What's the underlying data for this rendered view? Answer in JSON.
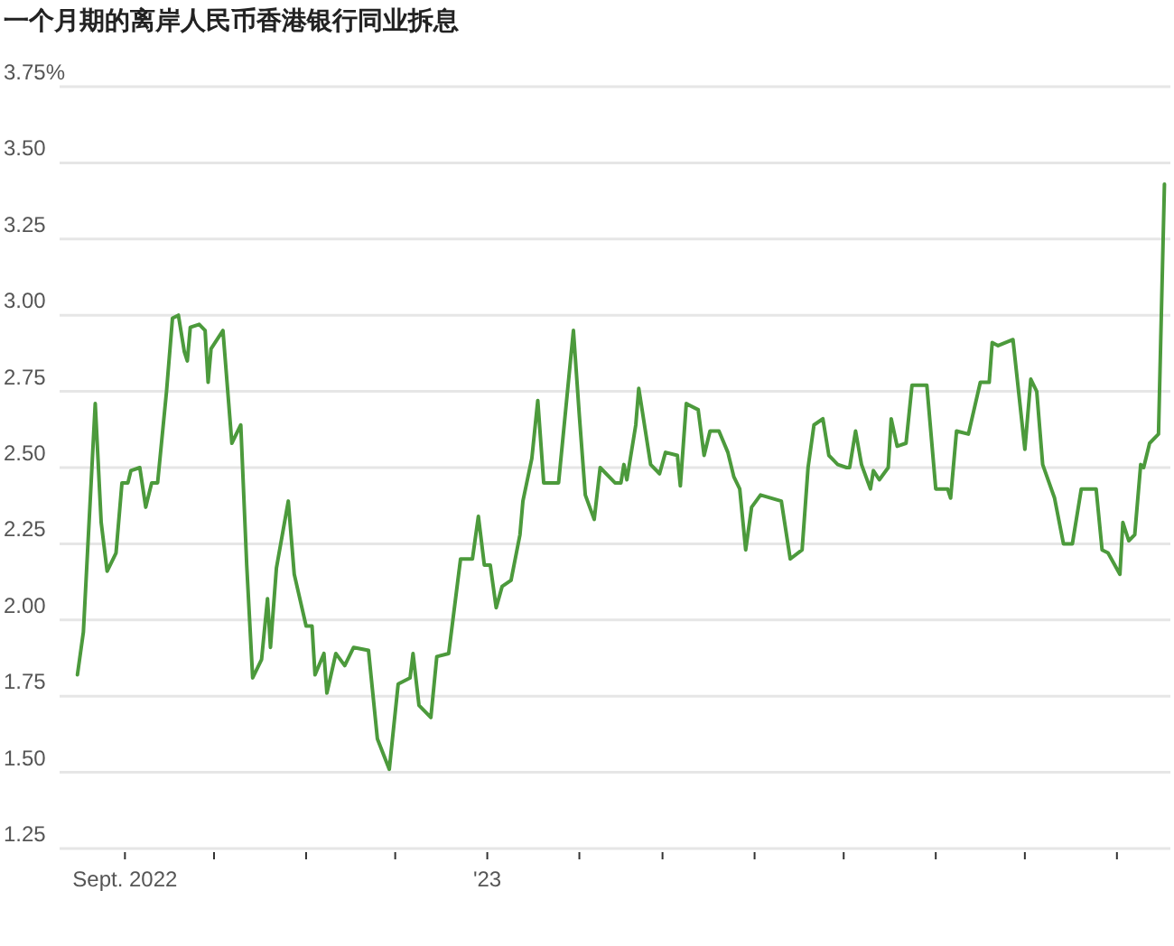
{
  "chart_data": {
    "type": "line",
    "title": "一个月期的离岸人民币香港银行同业拆息",
    "x": [
      "2022-08-16",
      "2022-08-18",
      "2022-08-22",
      "2022-08-24",
      "2022-08-26",
      "2022-08-29",
      "2022-08-31",
      "2022-09-02",
      "2022-09-03",
      "2022-09-06",
      "2022-09-08",
      "2022-09-10",
      "2022-09-12",
      "2022-09-15",
      "2022-09-17",
      "2022-09-19",
      "2022-09-21",
      "2022-09-22",
      "2022-09-23",
      "2022-09-26",
      "2022-09-28",
      "2022-09-29",
      "2022-09-30",
      "2022-10-04",
      "2022-10-07",
      "2022-10-10",
      "2022-10-12",
      "2022-10-14",
      "2022-10-17",
      "2022-10-19",
      "2022-10-20",
      "2022-10-22",
      "2022-10-26",
      "2022-10-28",
      "2022-11-01",
      "2022-11-03",
      "2022-11-04",
      "2022-11-07",
      "2022-11-08",
      "2022-11-11",
      "2022-11-14",
      "2022-11-17",
      "2022-11-22",
      "2022-11-25",
      "2022-11-29",
      "2022-12-02",
      "2022-12-06",
      "2022-12-07",
      "2022-12-09",
      "2022-12-13",
      "2022-12-15",
      "2022-12-19",
      "2022-12-23",
      "2022-12-27",
      "2022-12-29",
      "2022-12-31",
      "2023-01-02",
      "2023-01-04",
      "2023-01-06",
      "2023-01-09",
      "2023-01-12",
      "2023-01-13",
      "2023-01-16",
      "2023-01-18",
      "2023-01-20",
      "2023-01-25",
      "2023-01-30",
      "2023-02-01",
      "2023-02-03",
      "2023-02-06",
      "2023-02-08",
      "2023-02-13",
      "2023-02-15",
      "2023-02-16",
      "2023-02-17",
      "2023-02-20",
      "2023-02-21",
      "2023-02-25",
      "2023-02-28",
      "2023-03-02",
      "2023-03-06",
      "2023-03-07",
      "2023-03-09",
      "2023-03-13",
      "2023-03-15",
      "2023-03-17",
      "2023-03-20",
      "2023-03-23",
      "2023-03-25",
      "2023-03-27",
      "2023-03-29",
      "2023-03-31",
      "2023-04-03",
      "2023-04-10",
      "2023-04-13",
      "2023-04-17",
      "2023-04-19",
      "2023-04-21",
      "2023-04-24",
      "2023-04-26",
      "2023-04-29",
      "2023-05-02",
      "2023-05-03",
      "2023-05-05",
      "2023-05-07",
      "2023-05-10",
      "2023-05-11",
      "2023-05-13",
      "2023-05-16",
      "2023-05-17",
      "2023-05-19",
      "2023-05-22",
      "2023-05-24",
      "2023-05-29",
      "2023-06-01",
      "2023-06-05",
      "2023-06-06",
      "2023-06-08",
      "2023-06-12",
      "2023-06-16",
      "2023-06-19",
      "2023-06-20",
      "2023-06-22",
      "2023-06-27",
      "2023-07-01",
      "2023-07-03",
      "2023-07-05",
      "2023-07-07",
      "2023-07-11",
      "2023-07-14",
      "2023-07-17",
      "2023-07-20",
      "2023-07-25",
      "2023-07-27",
      "2023-07-29",
      "2023-08-02",
      "2023-08-03",
      "2023-08-05",
      "2023-08-07",
      "2023-08-09",
      "2023-08-10",
      "2023-08-12",
      "2023-08-15",
      "2023-08-17"
    ],
    "values": [
      1.82,
      1.96,
      2.71,
      2.32,
      2.16,
      2.22,
      2.45,
      2.45,
      2.49,
      2.5,
      2.37,
      2.45,
      2.45,
      2.75,
      2.99,
      3.0,
      2.88,
      2.85,
      2.96,
      2.97,
      2.95,
      2.78,
      2.89,
      2.95,
      2.58,
      2.64,
      2.18,
      1.81,
      1.87,
      2.07,
      1.91,
      2.17,
      2.39,
      2.15,
      1.98,
      1.98,
      1.82,
      1.89,
      1.76,
      1.89,
      1.85,
      1.91,
      1.9,
      1.61,
      1.51,
      1.79,
      1.81,
      1.89,
      1.72,
      1.68,
      1.88,
      1.89,
      2.2,
      2.2,
      2.34,
      2.18,
      2.18,
      2.04,
      2.11,
      2.13,
      2.28,
      2.39,
      2.53,
      2.72,
      2.45,
      2.45,
      2.95,
      2.67,
      2.41,
      2.33,
      2.5,
      2.45,
      2.45,
      2.51,
      2.46,
      2.64,
      2.76,
      2.51,
      2.48,
      2.55,
      2.54,
      2.44,
      2.71,
      2.69,
      2.54,
      2.62,
      2.62,
      2.55,
      2.47,
      2.43,
      2.23,
      2.37,
      2.41,
      2.39,
      2.2,
      2.23,
      2.5,
      2.64,
      2.66,
      2.54,
      2.51,
      2.5,
      2.5,
      2.62,
      2.51,
      2.43,
      2.49,
      2.46,
      2.5,
      2.66,
      2.57,
      2.58,
      2.77,
      2.77,
      2.43,
      2.43,
      2.4,
      2.62,
      2.61,
      2.78,
      2.78,
      2.91,
      2.9,
      2.92,
      2.56,
      2.79,
      2.75,
      2.51,
      2.4,
      2.25,
      2.25,
      2.43,
      2.43,
      2.23,
      2.22,
      2.15,
      2.32,
      2.26,
      2.28,
      2.51,
      2.5,
      2.58,
      2.61,
      3.43
    ],
    "color": "#4c9a3c",
    "xlim": [
      "2022-08-10",
      "2023-08-19"
    ],
    "xticks": [
      {
        "value": "2022-09-01",
        "label": "Sept. 2022"
      },
      {
        "value": "2022-10-01",
        "label": null
      },
      {
        "value": "2022-11-01",
        "label": null
      },
      {
        "value": "2022-12-01",
        "label": null
      },
      {
        "value": "2023-01-01",
        "label": "'23"
      },
      {
        "value": "2023-02-01",
        "label": null
      },
      {
        "value": "2023-03-01",
        "label": null
      },
      {
        "value": "2023-04-01",
        "label": null
      },
      {
        "value": "2023-05-01",
        "label": null
      },
      {
        "value": "2023-06-01",
        "label": null
      },
      {
        "value": "2023-07-01",
        "label": null
      },
      {
        "value": "2023-08-01",
        "label": null
      }
    ],
    "ylim": [
      1.25,
      3.75
    ],
    "yticks": [
      {
        "value": 3.75,
        "label": "3.75%"
      },
      {
        "value": 3.5,
        "label": "3.50"
      },
      {
        "value": 3.25,
        "label": "3.25"
      },
      {
        "value": 3,
        "label": "3.00"
      },
      {
        "value": 2.75,
        "label": "2.75"
      },
      {
        "value": 2.5,
        "label": "2.50"
      },
      {
        "value": 2.25,
        "label": "2.25"
      },
      {
        "value": 2,
        "label": "2.00"
      },
      {
        "value": 1.75,
        "label": "1.75"
      },
      {
        "value": 1.5,
        "label": "1.50"
      },
      {
        "value": 1.25,
        "label": "1.25"
      }
    ],
    "grid": "y"
  }
}
